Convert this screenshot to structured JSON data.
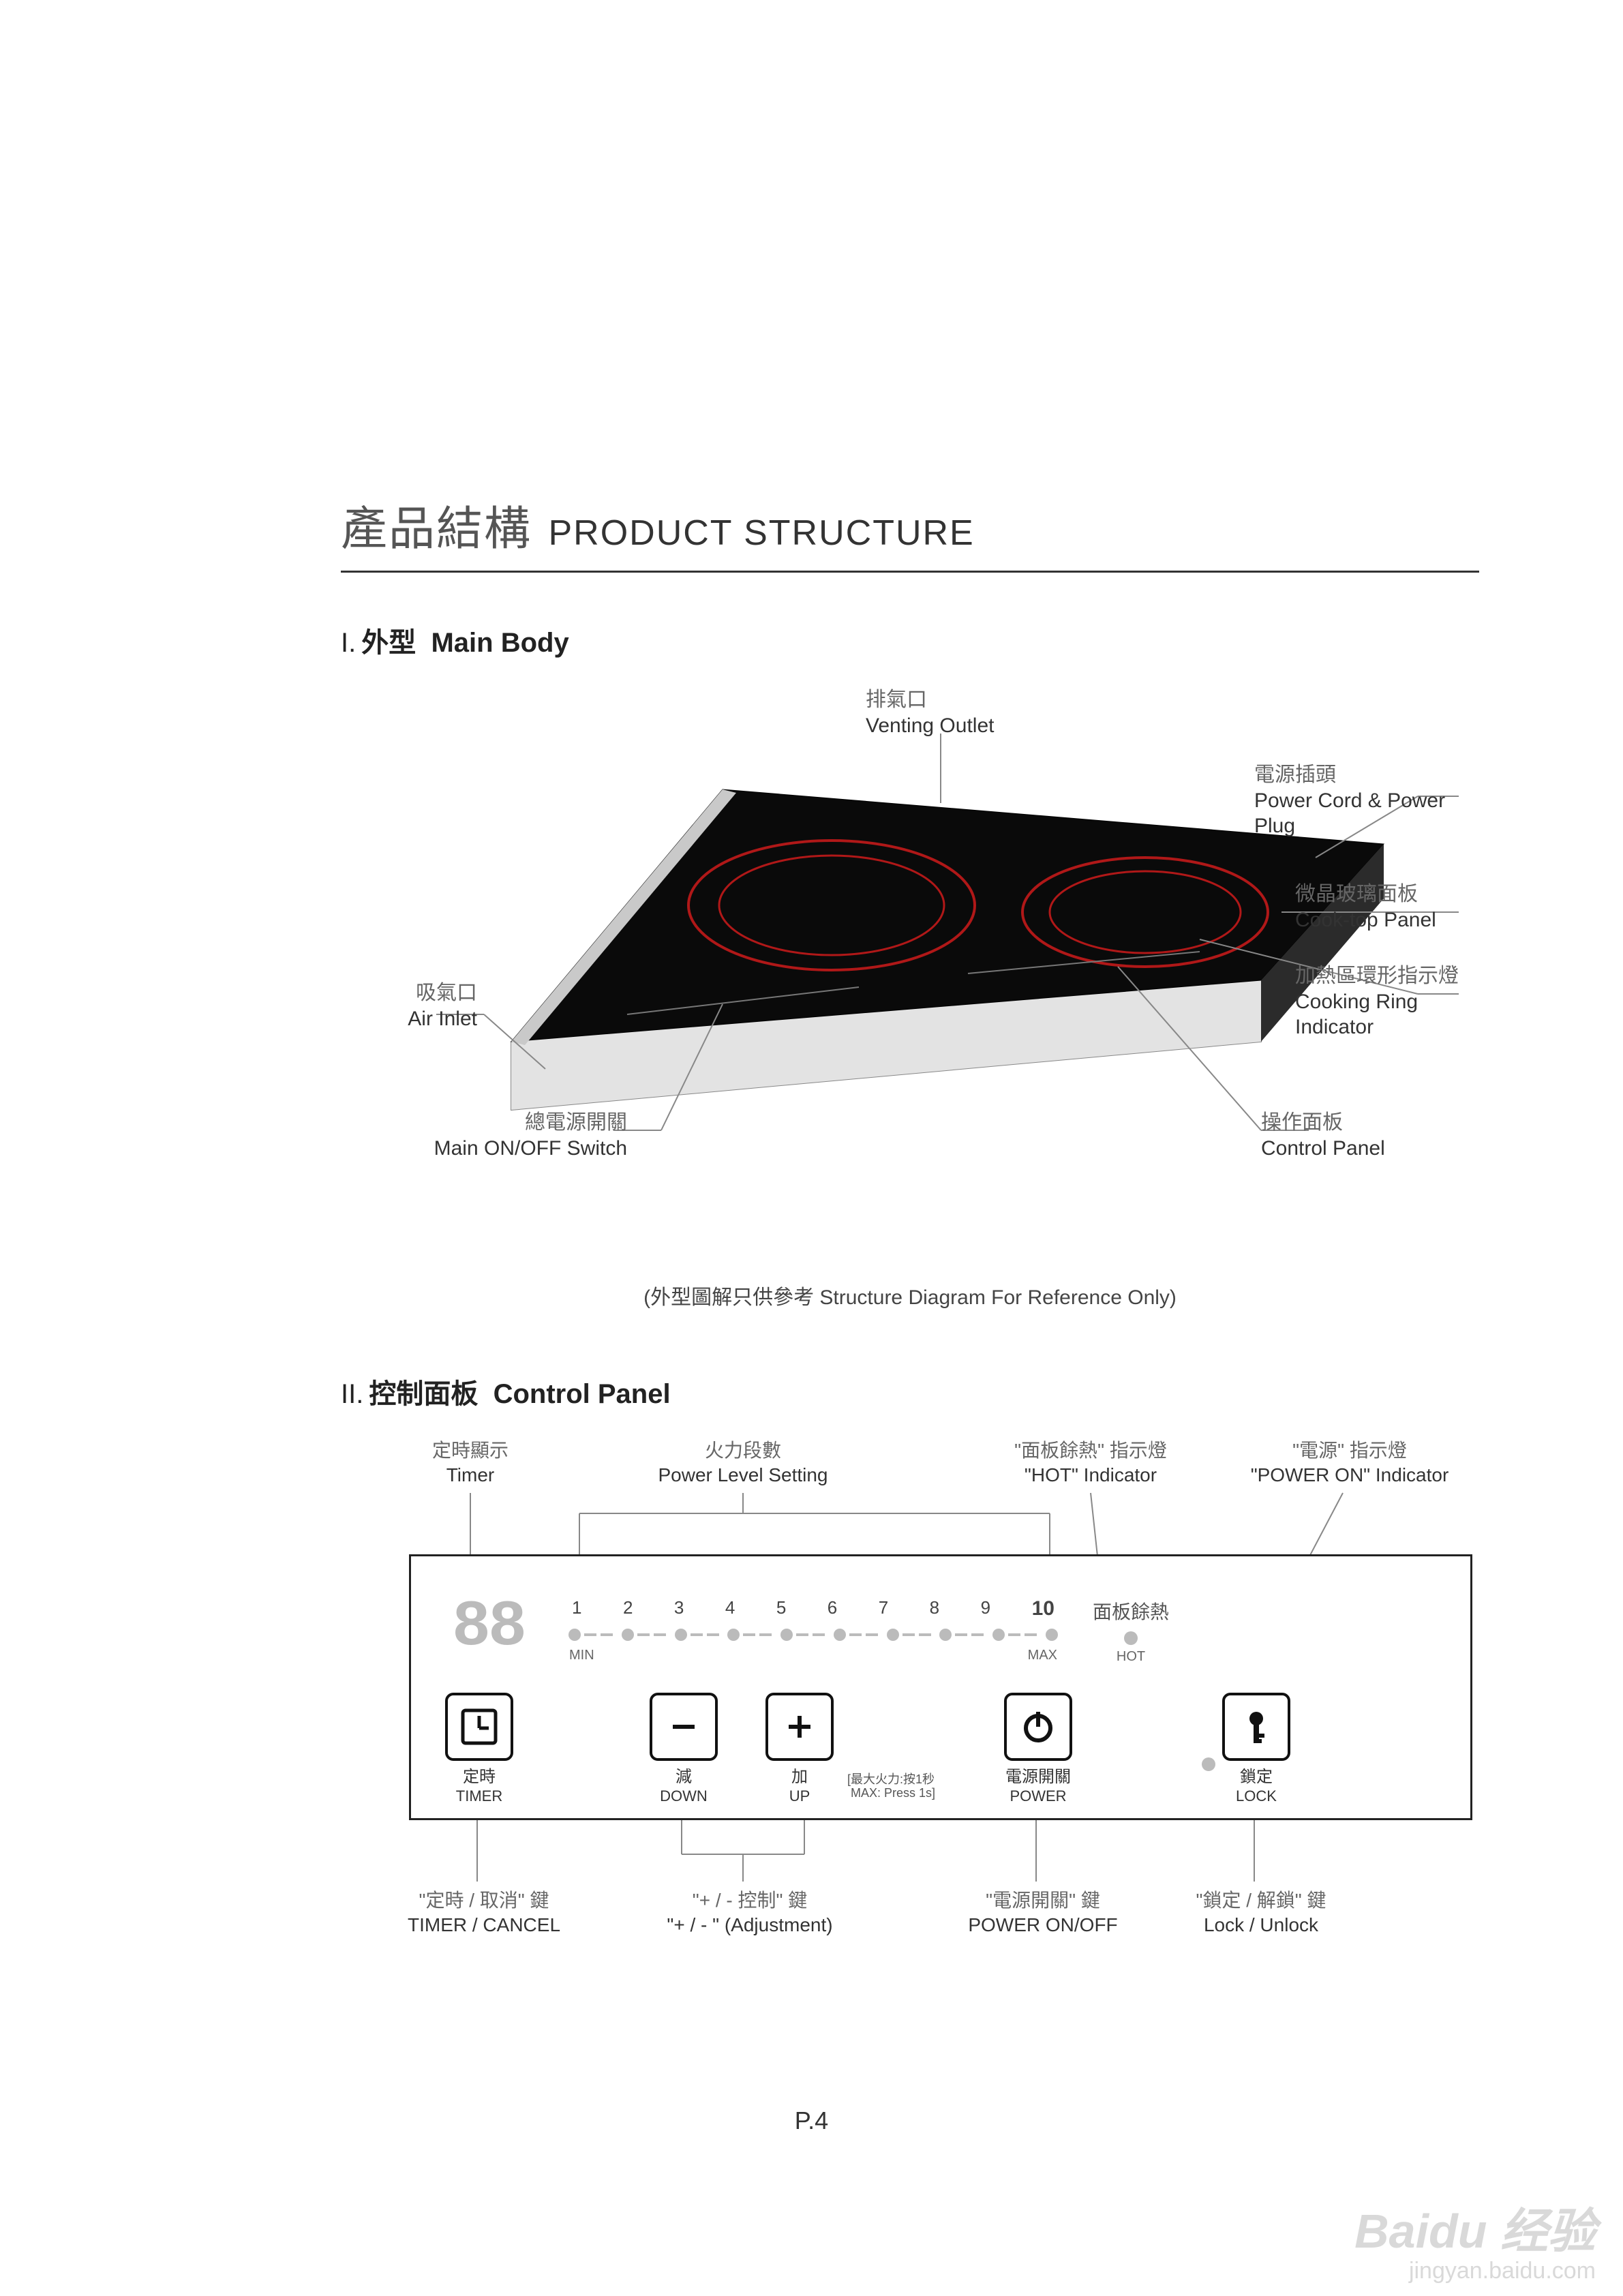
{
  "title": {
    "cn": "產品結構",
    "en": "PRODUCT STRUCTURE"
  },
  "section1": {
    "roman": "I.",
    "cn": "外型",
    "en": "Main Body"
  },
  "section2": {
    "roman": "II.",
    "cn": "控制面板",
    "en": "Control Panel"
  },
  "caption": "(外型圖解只供參考 Structure Diagram For Reference Only)",
  "page_num": "P.4",
  "body_labels": {
    "venting": {
      "cn": "排氣口",
      "en": "Venting Outlet"
    },
    "plug": {
      "cn": "電源插頭",
      "en": "Power Cord & Power Plug"
    },
    "cooktop": {
      "cn": "微晶玻璃面板",
      "en": "Cook-top Panel"
    },
    "ring": {
      "cn": "加熱區環形指示燈",
      "en": "Cooking Ring Indicator"
    },
    "ctrlpanel": {
      "cn": "操作面板",
      "en": "Control Panel"
    },
    "air": {
      "cn": "吸氣口",
      "en": "Air Inlet"
    },
    "mainsw": {
      "cn": "總電源開關",
      "en": "Main ON/OFF Switch"
    }
  },
  "panel": {
    "timer_display": "88",
    "levels": [
      "1",
      "2",
      "3",
      "4",
      "5",
      "6",
      "7",
      "8",
      "9",
      "10"
    ],
    "min": "MIN",
    "max": "MAX",
    "hot_cn": "面板餘熱",
    "hot_en": "HOT",
    "note_cn": "最大火力:按1秒",
    "note_en": "MAX: Press 1s",
    "buttons": {
      "timer": {
        "cn": "定時",
        "en": "TIMER"
      },
      "down": {
        "cn": "減",
        "en": "DOWN"
      },
      "up": {
        "cn": "加",
        "en": "UP"
      },
      "power": {
        "cn": "電源開關",
        "en": "POWER"
      },
      "lock": {
        "cn": "鎖定",
        "en": "LOCK"
      }
    }
  },
  "top_labels": {
    "timer": {
      "cn": "定時顯示",
      "en": "Timer"
    },
    "level": {
      "cn": "火力段數",
      "en": "Power Level Setting"
    },
    "hot": {
      "cn": "\"面板餘熱\" 指示燈",
      "en": "\"HOT\" Indicator"
    },
    "pwron": {
      "cn": "\"電源\" 指示燈",
      "en": "\"POWER ON\" Indicator"
    }
  },
  "bot_labels": {
    "timer": {
      "cn": "\"定時 / 取消\" 鍵",
      "en": "TIMER / CANCEL"
    },
    "adj": {
      "cn": "\"+ / - 控制\" 鍵",
      "en": "\"+ / - \" (Adjustment)"
    },
    "power": {
      "cn": "\"電源開關\" 鍵",
      "en": "POWER ON/OFF"
    },
    "lock": {
      "cn": "\"鎖定 / 解鎖\" 鍵",
      "en": "Lock / Unlock"
    }
  },
  "watermark": {
    "main": "Baidu 经验",
    "sub": "jingyan.baidu.com"
  },
  "colors": {
    "ring": "#b01818",
    "cooktop": "#111",
    "side": "#d7d7d7",
    "dot": "#bbb",
    "border": "#222",
    "text_gray": "#666"
  }
}
